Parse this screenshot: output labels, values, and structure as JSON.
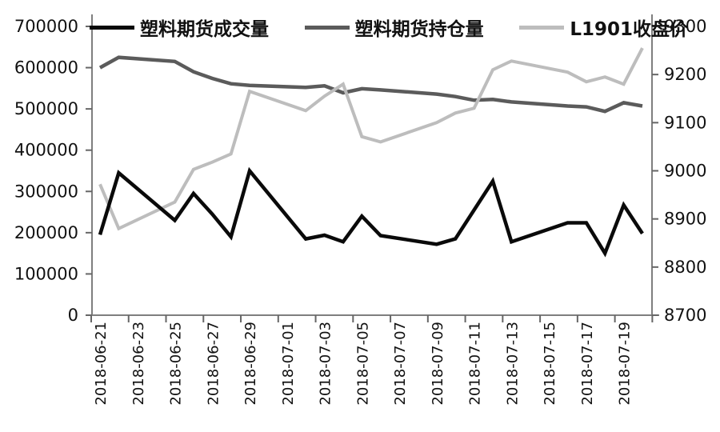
{
  "chart_data": {
    "type": "line",
    "title": "",
    "xlabel": "",
    "ylabel_left": "",
    "ylabel_right": "",
    "grid": false,
    "legend_position": "top",
    "x": [
      "2018-06-21",
      "2018-06-22",
      "2018-06-25",
      "2018-06-26",
      "2018-06-27",
      "2018-06-28",
      "2018-06-29",
      "2018-07-02",
      "2018-07-03",
      "2018-07-04",
      "2018-07-05",
      "2018-07-06",
      "2018-07-09",
      "2018-07-10",
      "2018-07-11",
      "2018-07-12",
      "2018-07-13",
      "2018-07-16",
      "2018-07-17",
      "2018-07-18",
      "2018-07-19",
      "2018-07-20"
    ],
    "series": [
      {
        "name": "塑料期货成交量",
        "axis": "left",
        "color": "#0a0a0a",
        "width": 4.5,
        "values": [
          195000,
          345000,
          230000,
          295000,
          245000,
          190000,
          350000,
          185000,
          194000,
          178000,
          240000,
          193000,
          172000,
          185000,
          255000,
          325000,
          178000,
          224000,
          224000,
          150000,
          267000,
          198000
        ]
      },
      {
        "name": "塑料期货持仓量",
        "axis": "left",
        "color": "#5b5b5b",
        "width": 4.5,
        "values": [
          600000,
          625000,
          615000,
          590000,
          574000,
          561000,
          557000,
          552000,
          556000,
          539000,
          549000,
          546000,
          536000,
          530000,
          521000,
          523000,
          517000,
          507000,
          505000,
          494000,
          515000,
          507000
        ]
      },
      {
        "name": "L1901收盘价",
        "axis": "right",
        "color": "#bdbdbd",
        "width": 4,
        "values": [
          8972,
          8880,
          8935,
          9003,
          9018,
          9035,
          9165,
          9125,
          9155,
          9180,
          9071,
          9060,
          9100,
          9120,
          9130,
          9210,
          9228,
          9205,
          9185,
          9195,
          9180,
          9255
        ]
      }
    ],
    "left_axis": {
      "min": 0,
      "max": 700000,
      "step": 100000,
      "tick_labels": [
        "700000",
        "600000",
        "500000",
        "400000",
        "300000",
        "200000",
        "100000",
        "0"
      ]
    },
    "right_axis": {
      "min": 8700,
      "max": 9300,
      "step": 100,
      "tick_labels": [
        "9300",
        "9200",
        "9100",
        "9000",
        "8900",
        "8800",
        "8700"
      ]
    },
    "x_tick_labels": [
      "2018-06-21",
      "2018-06-23",
      "2018-06-25",
      "2018-06-27",
      "2018-06-29",
      "2018-07-01",
      "2018-07-03",
      "2018-07-05",
      "2018-07-07",
      "2018-07-09",
      "2018-07-11",
      "2018-07-13",
      "2018-07-15",
      "2018-07-17",
      "2018-07-19"
    ],
    "colors": {
      "background": "#ffffff",
      "axis_line": "#7f7f7f",
      "tick": "#666666",
      "text": "#111111"
    }
  }
}
